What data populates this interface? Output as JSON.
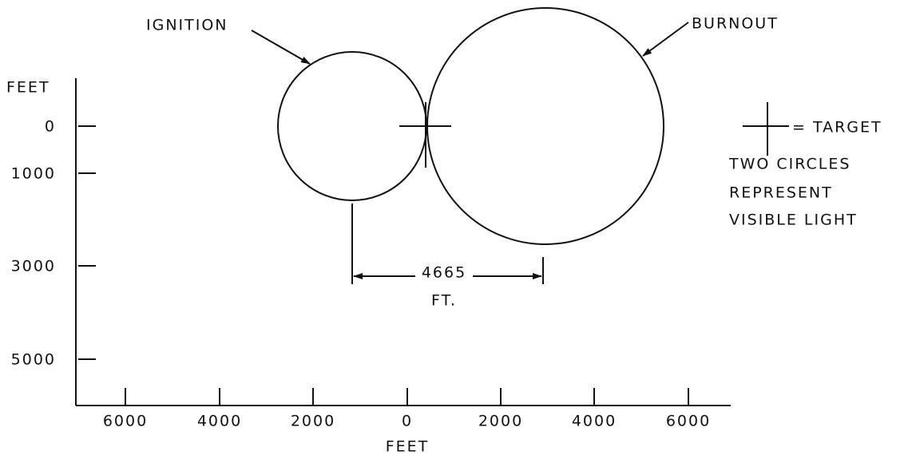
{
  "labels": {
    "ignition": "IGNITION",
    "burnout": "BURNOUT"
  },
  "y_axis": {
    "label": "FEET",
    "ticks": [
      "0",
      "1000",
      "3000",
      "5000"
    ]
  },
  "x_axis": {
    "label": "FEET",
    "ticks": [
      "6000",
      "4000",
      "2000",
      "0",
      "2000",
      "4000",
      "6000"
    ]
  },
  "dimension": {
    "value": "4665",
    "unit": "FT."
  },
  "legend": {
    "symbol_text": "= TARGET",
    "note": [
      "TWO CIRCLES",
      "REPRESENT",
      "VISIBLE LIGHT"
    ]
  }
}
